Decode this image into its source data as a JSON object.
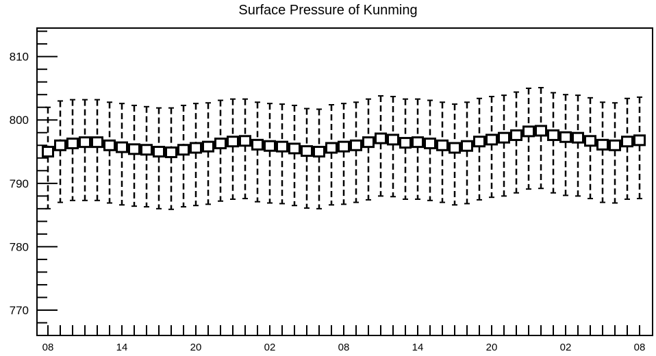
{
  "chart_data": {
    "type": "boxplot",
    "title": "Surface Pressure of Kunming",
    "xlabel": "",
    "ylabel": "",
    "x_tick_labels": [
      "08",
      "14",
      "20",
      "02",
      "08",
      "14",
      "20",
      "02",
      "08"
    ],
    "ylim": [
      766,
      814.5
    ],
    "y_ticks": [
      770,
      780,
      790,
      800,
      810
    ],
    "grid": false,
    "legend": "none",
    "series": [
      {
        "center": [
          795.0,
          796.0,
          796.3,
          796.5,
          796.5,
          796.0,
          795.7,
          795.4,
          795.3,
          795.0,
          794.9,
          795.3,
          795.6,
          795.8,
          796.3,
          796.6,
          796.7,
          796.1,
          795.9,
          795.8,
          795.5,
          795.1,
          795.0,
          795.6,
          795.8,
          796.0,
          796.5,
          797.1,
          796.9,
          796.4,
          796.5,
          796.3,
          796.0,
          795.6,
          795.9,
          796.6,
          796.9,
          797.2,
          797.6,
          798.2,
          798.3,
          797.6,
          797.3,
          797.2,
          796.7,
          796.1,
          796.0,
          796.6,
          796.8
        ],
        "upper": [
          802.0,
          803.0,
          803.2,
          803.2,
          803.2,
          802.8,
          802.6,
          802.3,
          802.1,
          801.9,
          801.9,
          802.3,
          802.6,
          802.7,
          803.1,
          803.3,
          803.3,
          802.8,
          802.6,
          802.5,
          802.3,
          801.8,
          801.7,
          802.4,
          802.6,
          802.8,
          803.3,
          803.8,
          803.7,
          803.3,
          803.3,
          803.1,
          802.8,
          802.5,
          802.8,
          803.4,
          803.7,
          803.9,
          804.4,
          805.0,
          805.1,
          804.3,
          804.0,
          803.9,
          803.5,
          802.8,
          802.7,
          803.4,
          803.6
        ],
        "lower": [
          786.0,
          787.0,
          787.3,
          787.3,
          787.3,
          786.9,
          786.6,
          786.4,
          786.3,
          786.0,
          785.9,
          786.3,
          786.5,
          786.7,
          787.2,
          787.5,
          787.6,
          787.1,
          786.9,
          786.8,
          786.5,
          786.1,
          786.0,
          786.6,
          786.7,
          787.0,
          787.4,
          788.0,
          787.9,
          787.5,
          787.5,
          787.3,
          787.0,
          786.6,
          786.8,
          787.4,
          787.8,
          788.0,
          788.5,
          789.1,
          789.2,
          788.5,
          788.1,
          788.0,
          787.6,
          787.0,
          786.9,
          787.5,
          787.6
        ]
      }
    ]
  }
}
